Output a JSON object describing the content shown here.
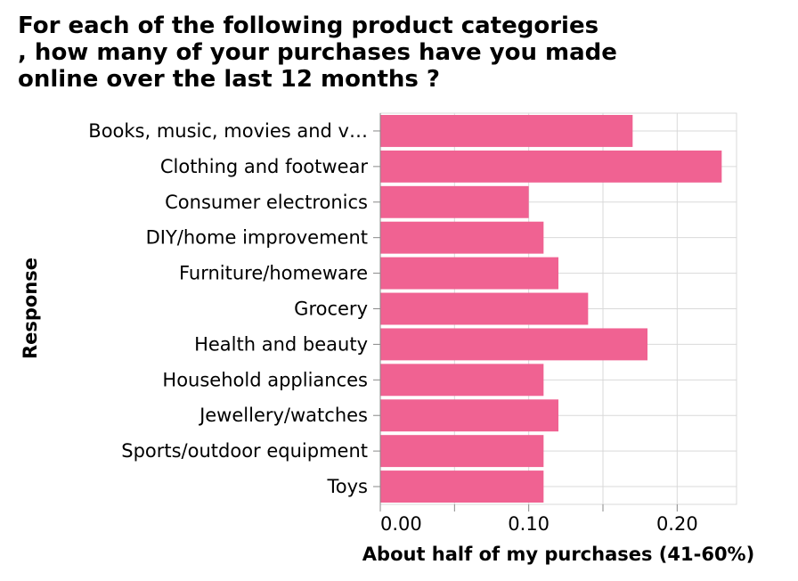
{
  "chart_data": {
    "type": "bar",
    "orientation": "horizontal",
    "title_lines": [
      "For each of the following product categories",
      ", how many of your purchases have you made",
      "online over the last 12 months ?"
    ],
    "xlabel": "About half of my purchases (41-60%)",
    "ylabel": "Response",
    "categories": [
      "Books, music, movies and v…",
      "Clothing and footwear",
      "Consumer electronics",
      "DIY/home improvement",
      "Furniture/homeware",
      "Grocery",
      "Health and beauty",
      "Household appliances",
      "Jewellery/watches",
      "Sports/outdoor equipment",
      "Toys"
    ],
    "values": [
      0.17,
      0.23,
      0.1,
      0.11,
      0.12,
      0.14,
      0.18,
      0.11,
      0.12,
      0.11,
      0.11
    ],
    "xlim": [
      0,
      0.24
    ],
    "xticks": [
      0.0,
      0.1,
      0.2
    ],
    "xtick_labels": [
      "0.00",
      "0.10",
      "0.20"
    ],
    "bar_color": "#f06292",
    "grid": true
  }
}
